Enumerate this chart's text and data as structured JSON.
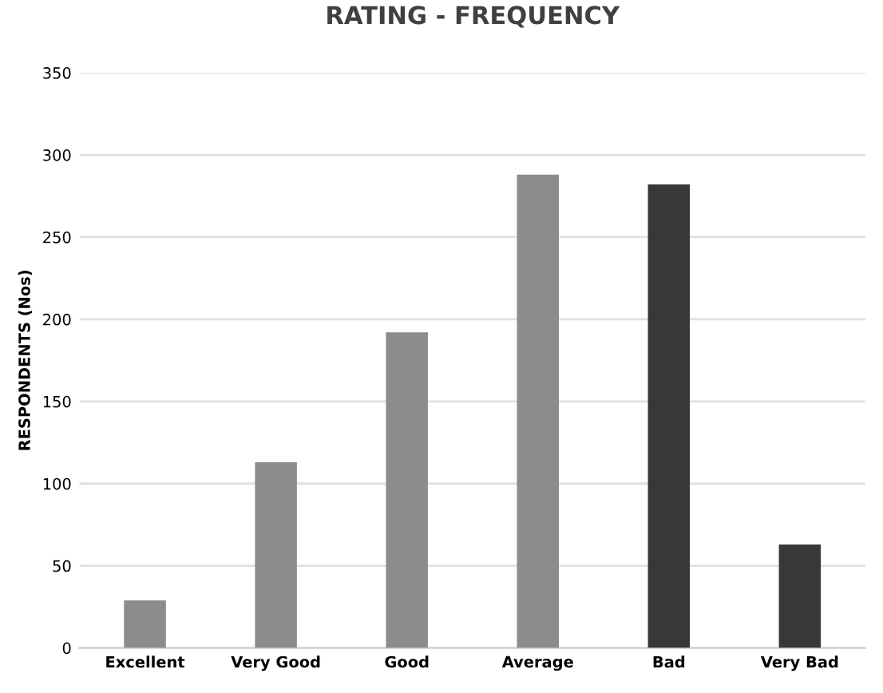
{
  "chart_data": {
    "type": "bar",
    "title": "RATING - FREQUENCY",
    "ylabel": "RESPONDENTS (Nos)",
    "categories": [
      "Excellent",
      "Very Good",
      "Good",
      "Average",
      "Bad",
      "Very Bad"
    ],
    "values": [
      29,
      113,
      192,
      288,
      282,
      63
    ],
    "colors": [
      "#8c8c8c",
      "#8c8c8c",
      "#8c8c8c",
      "#8c8c8c",
      "#383838",
      "#383838"
    ],
    "ylim": [
      0,
      350
    ],
    "yticks": [
      0,
      50,
      100,
      150,
      200,
      250,
      300,
      350
    ],
    "grid": "y"
  }
}
